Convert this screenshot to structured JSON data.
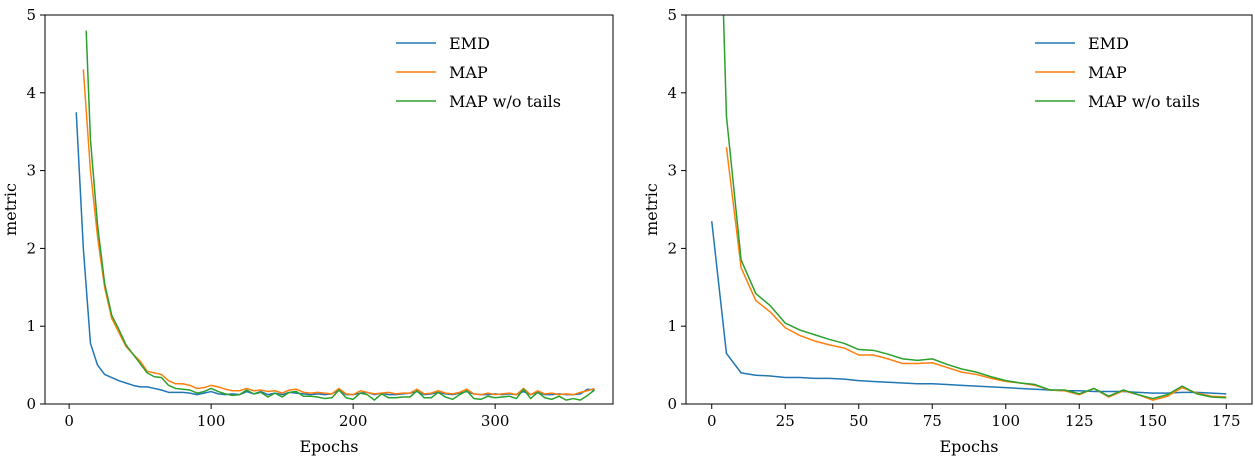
{
  "colors": {
    "EMD": "#1f77b4",
    "MAP": "#ff7f0e",
    "MAP w/o tails": "#2ca02c"
  },
  "chart_data": [
    {
      "type": "line",
      "xlabel": "Epochs",
      "ylabel": "metric",
      "xlim": [
        -17,
        383
      ],
      "ylim": [
        0,
        5
      ],
      "xticks": [
        0,
        100,
        200,
        300
      ],
      "yticks": [
        0,
        1,
        2,
        3,
        4,
        5
      ],
      "legend": "top-right",
      "series": [
        {
          "name": "EMD",
          "x": [
            5,
            10,
            15,
            20,
            25,
            30,
            35,
            40,
            45,
            50,
            55,
            60,
            65,
            70,
            75,
            80,
            85,
            90,
            95,
            100,
            105,
            110,
            115,
            120,
            125,
            130,
            135,
            140,
            145,
            150,
            155,
            160,
            165,
            170,
            175,
            180,
            185,
            190,
            195,
            200,
            205,
            210,
            215,
            220,
            225,
            230,
            235,
            240,
            245,
            250,
            255,
            260,
            265,
            270,
            275,
            280,
            285,
            290,
            295,
            300,
            305,
            310,
            315,
            320,
            325,
            330,
            335,
            340,
            345,
            350,
            355,
            360,
            365,
            370
          ],
          "y": [
            3.75,
            2.0,
            0.78,
            0.5,
            0.38,
            0.34,
            0.3,
            0.27,
            0.24,
            0.22,
            0.22,
            0.2,
            0.18,
            0.15,
            0.15,
            0.15,
            0.14,
            0.12,
            0.14,
            0.16,
            0.13,
            0.12,
            0.13,
            0.12,
            0.16,
            0.13,
            0.16,
            0.12,
            0.14,
            0.12,
            0.15,
            0.14,
            0.13,
            0.12,
            0.13,
            0.12,
            0.13,
            0.18,
            0.12,
            0.12,
            0.14,
            0.15,
            0.12,
            0.14,
            0.12,
            0.12,
            0.13,
            0.14,
            0.16,
            0.12,
            0.13,
            0.15,
            0.13,
            0.12,
            0.14,
            0.16,
            0.13,
            0.12,
            0.12,
            0.13,
            0.12,
            0.13,
            0.12,
            0.16,
            0.12,
            0.15,
            0.12,
            0.12,
            0.13,
            0.12,
            0.12,
            0.13,
            0.19,
            0.18
          ]
        },
        {
          "name": "MAP",
          "x": [
            10,
            15,
            20,
            25,
            30,
            35,
            40,
            45,
            50,
            55,
            60,
            65,
            70,
            75,
            80,
            85,
            90,
            95,
            100,
            105,
            110,
            115,
            120,
            125,
            130,
            135,
            140,
            145,
            150,
            155,
            160,
            165,
            170,
            175,
            180,
            185,
            190,
            195,
            200,
            205,
            210,
            215,
            220,
            225,
            230,
            235,
            240,
            245,
            250,
            255,
            260,
            265,
            270,
            275,
            280,
            285,
            290,
            295,
            300,
            305,
            310,
            315,
            320,
            325,
            330,
            335,
            340,
            345,
            350,
            355,
            360,
            365,
            370
          ],
          "y": [
            4.3,
            3.0,
            2.15,
            1.5,
            1.1,
            0.92,
            0.74,
            0.64,
            0.55,
            0.42,
            0.4,
            0.38,
            0.3,
            0.26,
            0.26,
            0.24,
            0.2,
            0.21,
            0.24,
            0.22,
            0.19,
            0.17,
            0.17,
            0.2,
            0.17,
            0.18,
            0.16,
            0.17,
            0.14,
            0.18,
            0.19,
            0.15,
            0.14,
            0.15,
            0.14,
            0.13,
            0.2,
            0.13,
            0.12,
            0.17,
            0.15,
            0.13,
            0.14,
            0.15,
            0.13,
            0.14,
            0.14,
            0.19,
            0.13,
            0.14,
            0.17,
            0.14,
            0.13,
            0.15,
            0.19,
            0.13,
            0.12,
            0.14,
            0.12,
            0.13,
            0.14,
            0.12,
            0.2,
            0.12,
            0.17,
            0.13,
            0.14,
            0.12,
            0.13,
            0.12,
            0.15,
            0.17,
            0.2
          ]
        },
        {
          "name": "MAP w/o tails",
          "x": [
            12,
            15,
            20,
            25,
            30,
            35,
            40,
            45,
            50,
            55,
            60,
            65,
            70,
            75,
            80,
            85,
            90,
            95,
            100,
            105,
            110,
            115,
            120,
            125,
            130,
            135,
            140,
            145,
            150,
            155,
            160,
            165,
            170,
            175,
            180,
            185,
            190,
            195,
            200,
            205,
            210,
            215,
            220,
            225,
            230,
            235,
            240,
            245,
            250,
            255,
            260,
            265,
            270,
            275,
            280,
            285,
            290,
            295,
            300,
            305,
            310,
            315,
            320,
            325,
            330,
            335,
            340,
            345,
            350,
            355,
            360,
            365,
            370
          ],
          "y": [
            4.8,
            3.4,
            2.3,
            1.55,
            1.14,
            0.96,
            0.76,
            0.64,
            0.52,
            0.4,
            0.35,
            0.34,
            0.24,
            0.2,
            0.19,
            0.18,
            0.14,
            0.16,
            0.2,
            0.16,
            0.13,
            0.11,
            0.12,
            0.18,
            0.13,
            0.15,
            0.09,
            0.14,
            0.09,
            0.15,
            0.16,
            0.1,
            0.1,
            0.09,
            0.07,
            0.08,
            0.18,
            0.08,
            0.06,
            0.14,
            0.12,
            0.05,
            0.13,
            0.08,
            0.08,
            0.09,
            0.09,
            0.17,
            0.08,
            0.08,
            0.15,
            0.09,
            0.06,
            0.12,
            0.17,
            0.07,
            0.06,
            0.1,
            0.08,
            0.09,
            0.1,
            0.07,
            0.19,
            0.07,
            0.15,
            0.08,
            0.06,
            0.1,
            0.05,
            0.07,
            0.05,
            0.11,
            0.18
          ]
        }
      ]
    },
    {
      "type": "line",
      "xlabel": "Epochs",
      "ylabel": "metric",
      "xlim": [
        -8.75,
        183.75
      ],
      "ylim": [
        0,
        5
      ],
      "xticks": [
        0,
        25,
        50,
        75,
        100,
        125,
        150,
        175
      ],
      "yticks": [
        0,
        1,
        2,
        3,
        4,
        5
      ],
      "legend": "top-right",
      "series": [
        {
          "name": "EMD",
          "x": [
            0,
            5,
            10,
            15,
            20,
            25,
            30,
            35,
            40,
            45,
            50,
            55,
            60,
            65,
            70,
            75,
            80,
            85,
            90,
            95,
            100,
            105,
            110,
            115,
            120,
            125,
            130,
            135,
            140,
            145,
            150,
            155,
            160,
            165,
            170,
            175
          ],
          "y": [
            2.35,
            0.65,
            0.4,
            0.37,
            0.36,
            0.34,
            0.34,
            0.33,
            0.33,
            0.32,
            0.3,
            0.29,
            0.28,
            0.27,
            0.26,
            0.26,
            0.25,
            0.24,
            0.23,
            0.22,
            0.21,
            0.2,
            0.19,
            0.18,
            0.17,
            0.17,
            0.16,
            0.16,
            0.16,
            0.15,
            0.14,
            0.14,
            0.15,
            0.15,
            0.14,
            0.13
          ]
        },
        {
          "name": "MAP",
          "x": [
            5,
            10,
            15,
            20,
            25,
            30,
            35,
            40,
            45,
            50,
            55,
            60,
            65,
            70,
            75,
            80,
            85,
            90,
            95,
            100,
            105,
            110,
            115,
            120,
            125,
            130,
            135,
            140,
            145,
            150,
            155,
            160,
            165,
            170,
            175
          ],
          "y": [
            3.3,
            1.75,
            1.33,
            1.18,
            0.98,
            0.88,
            0.81,
            0.76,
            0.72,
            0.63,
            0.63,
            0.58,
            0.52,
            0.52,
            0.53,
            0.47,
            0.41,
            0.38,
            0.33,
            0.29,
            0.27,
            0.24,
            0.18,
            0.17,
            0.12,
            0.2,
            0.09,
            0.17,
            0.12,
            0.05,
            0.1,
            0.21,
            0.14,
            0.1,
            0.09
          ]
        },
        {
          "name": "MAP w/o tails",
          "x": [
            4,
            5,
            10,
            15,
            20,
            25,
            30,
            35,
            40,
            45,
            50,
            55,
            60,
            65,
            70,
            75,
            80,
            85,
            90,
            95,
            100,
            105,
            110,
            115,
            120,
            125,
            130,
            135,
            140,
            145,
            150,
            155,
            160,
            165,
            170,
            175
          ],
          "y": [
            5.0,
            3.7,
            1.85,
            1.42,
            1.26,
            1.04,
            0.95,
            0.89,
            0.83,
            0.78,
            0.7,
            0.69,
            0.64,
            0.58,
            0.56,
            0.58,
            0.51,
            0.45,
            0.41,
            0.35,
            0.3,
            0.27,
            0.25,
            0.18,
            0.18,
            0.13,
            0.2,
            0.1,
            0.18,
            0.12,
            0.07,
            0.12,
            0.23,
            0.13,
            0.09,
            0.08
          ]
        }
      ]
    }
  ]
}
